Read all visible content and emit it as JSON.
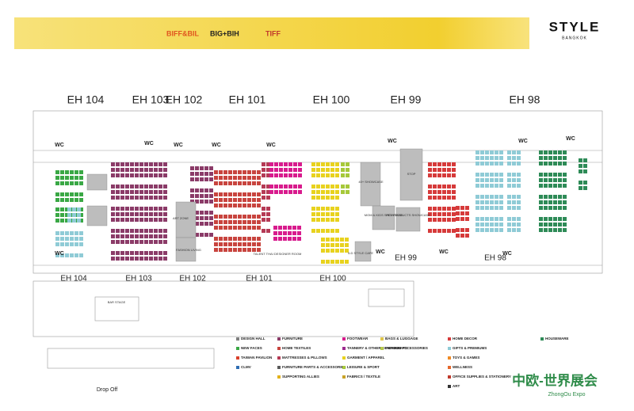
{
  "header": {
    "logos": [
      "BIFF&BIL",
      "BIG+BIH",
      "TIFF"
    ],
    "brand": "STYLE",
    "brand_sub": "BANGKOK"
  },
  "halls_top": [
    "EH 104",
    "EH 103",
    "EH 102",
    "EH 101",
    "EH 100",
    "EH 99",
    "EH 98"
  ],
  "halls_bottom": [
    "EH 104",
    "EH 103",
    "EH 102",
    "EH 101",
    "EH 100",
    "EH 99",
    "EH 98"
  ],
  "wc_labels": [
    "WC",
    "WC",
    "WC",
    "WC",
    "WC",
    "WC",
    "WC",
    "WC",
    "WC",
    "WC",
    "WC",
    "WC"
  ],
  "areas": [
    "ART ZONE",
    "FASHION LIVING",
    "TALENT THAI DESIGNER ROOM",
    "40+ SHOWCASE",
    "STOP",
    "MOM & KIDS SHOWCASE",
    "PET PRODUCTS SHOWCASE",
    "5-D STYLE CAFE",
    "BAR STAGE"
  ],
  "drop_off": "Drop Off",
  "legend": [
    {
      "name": "DESIGN HALL",
      "color": "#7f7f7f"
    },
    {
      "name": "NEW FACES",
      "color": "#3aa845"
    },
    {
      "name": "TAIWAN PAVILION",
      "color": "#d9412b"
    },
    {
      "name": "CLMV",
      "color": "#2f6db3"
    },
    {
      "name": "FURNITURE",
      "color": "#8b3b68"
    },
    {
      "name": "HOME TEXTILES",
      "color": "#c8443e"
    },
    {
      "name": "MATTRESSES & PILLOWS",
      "color": "#b53a55"
    },
    {
      "name": "FURNITURE PARTS & ACCESSORIES",
      "color": "#5a5a5a"
    },
    {
      "name": "SUPPORTING ALLIES",
      "color": "#e3b21c"
    },
    {
      "name": "FOOTWEAR",
      "color": "#d81b8d"
    },
    {
      "name": "TANNERY & OTHER COMPONENTS",
      "color": "#9c2b8e"
    },
    {
      "name": "GARMENT / APPAREL",
      "color": "#e8d21e"
    },
    {
      "name": "LEISURE & SPORT",
      "color": "#a6c83a"
    },
    {
      "name": "FABRICS / TEXTILE",
      "color": "#c9a227"
    },
    {
      "name": "BAGS & LUGGAGE",
      "color": "#e0c64a"
    },
    {
      "name": "FASHION ACCESSORIES",
      "color": "#b7c94a"
    },
    {
      "name": "HOME DECOR",
      "color": "#d63a3a"
    },
    {
      "name": "GIFTS & PREMIUMS",
      "color": "#8fcbd6"
    },
    {
      "name": "TOYS & GAMES",
      "color": "#f08a24"
    },
    {
      "name": "WELLNESS",
      "color": "#e6662a"
    },
    {
      "name": "OFFICE SUPPLIES & STATIONERY",
      "color": "#c0392b"
    },
    {
      "name": "ART",
      "color": "#333333"
    },
    {
      "name": "HOUSEWARE",
      "color": "#2e8b57"
    }
  ],
  "watermark": "中欧-世界展会",
  "watermark_sub": "ZhongOu Expo"
}
